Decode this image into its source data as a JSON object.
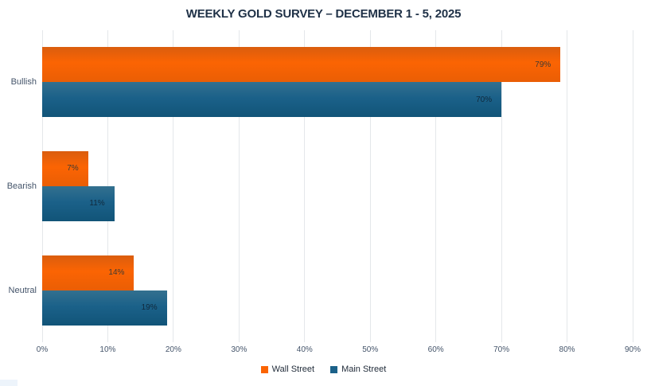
{
  "title": "WEEKLY GOLD SURVEY – DECEMBER 1 - 5, 2025",
  "chart_data": {
    "type": "bar",
    "orientation": "horizontal",
    "title": "WEEKLY GOLD SURVEY – DECEMBER 1 - 5, 2025",
    "categories": [
      "Bullish",
      "Bearish",
      "Neutral"
    ],
    "series": [
      {
        "name": "Wall Street",
        "values": [
          79,
          7,
          14
        ],
        "color": "#fb6403",
        "color_top": "#da5d0e",
        "color_bottom": "#ea5e05",
        "label_color": "#3f3a33"
      },
      {
        "name": "Main Street",
        "values": [
          70,
          11,
          19
        ],
        "color": "#1b6189",
        "color_top": "#33708f",
        "color_bottom": "#115478",
        "label_color": "#10293c"
      }
    ],
    "value_suffix": "%",
    "data_labels": "inside-end",
    "x_ticks": [
      "0%",
      "10%",
      "20%",
      "30%",
      "40%",
      "50%",
      "60%",
      "70%",
      "80%",
      "90%"
    ],
    "xlim": [
      0,
      90
    ],
    "xlabel": "",
    "ylabel": "",
    "grid": true,
    "gridline_color": "#e4e7ea",
    "legend_position": "bottom"
  }
}
